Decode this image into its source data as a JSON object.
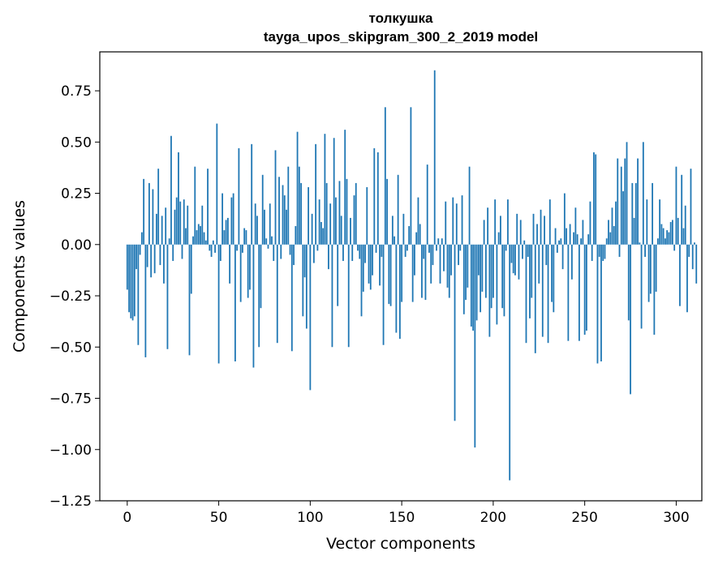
{
  "chart_data": {
    "type": "bar",
    "title": "толкушка",
    "subtitle": "tayga_upos_skipgram_300_2_2019 model",
    "xlabel": "Vector components",
    "ylabel": "Components values",
    "xlim": [
      -15,
      314
    ],
    "ylim": [
      -1.25,
      0.94
    ],
    "xticks": [
      0,
      50,
      100,
      150,
      200,
      250,
      300
    ],
    "xtick_labels": [
      "0",
      "50",
      "100",
      "150",
      "200",
      "250",
      "300"
    ],
    "yticks": [
      -1.25,
      -1.0,
      -0.75,
      -0.5,
      -0.25,
      0.0,
      0.25,
      0.5,
      0.75
    ],
    "ytick_labels": [
      "−1.25",
      "−1.00",
      "−0.75",
      "−0.50",
      "−0.25",
      "0.00",
      "0.25",
      "0.50",
      "0.75"
    ],
    "grid": false,
    "legend": "none",
    "bar_color": "#1f77b4",
    "values": [
      -0.22,
      -0.33,
      -0.36,
      -0.37,
      -0.35,
      -0.12,
      -0.49,
      -0.05,
      0.06,
      0.32,
      -0.55,
      -0.11,
      0.3,
      -0.16,
      0.27,
      -0.14,
      0.15,
      0.37,
      -0.1,
      0.14,
      -0.19,
      0.18,
      -0.51,
      0.03,
      0.53,
      -0.08,
      0.17,
      0.23,
      0.45,
      0.21,
      -0.07,
      0.22,
      0.08,
      0.19,
      -0.54,
      -0.24,
      0.04,
      0.38,
      0.07,
      0.1,
      0.09,
      0.19,
      0.06,
      0.02,
      0.37,
      -0.03,
      -0.06,
      0.02,
      -0.04,
      0.59,
      -0.58,
      -0.08,
      0.25,
      0.07,
      0.12,
      0.13,
      -0.19,
      0.23,
      0.25,
      -0.57,
      -0.03,
      0.47,
      -0.28,
      -0.04,
      0.08,
      0.07,
      -0.26,
      -0.22,
      0.49,
      -0.6,
      0.2,
      0.14,
      -0.5,
      -0.31,
      0.34,
      0.17,
      0.03,
      -0.02,
      0.2,
      0.04,
      -0.08,
      0.46,
      -0.48,
      0.33,
      -0.07,
      0.29,
      0.24,
      0.17,
      0.38,
      -0.05,
      -0.52,
      -0.1,
      0.09,
      0.55,
      0.38,
      0.3,
      -0.35,
      -0.16,
      -0.41,
      0.28,
      -0.71,
      0.15,
      -0.09,
      0.49,
      -0.03,
      0.22,
      0.11,
      0.08,
      0.54,
      0.3,
      -0.12,
      0.2,
      -0.5,
      0.52,
      0.23,
      -0.3,
      0.31,
      0.14,
      -0.08,
      0.56,
      0.32,
      -0.5,
      0.13,
      -0.08,
      0.24,
      0.3,
      -0.03,
      -0.07,
      -0.35,
      -0.23,
      -0.09,
      0.28,
      -0.19,
      -0.22,
      -0.15,
      0.47,
      -0.04,
      0.45,
      -0.2,
      -0.06,
      -0.49,
      0.67,
      0.32,
      -0.29,
      -0.3,
      0.14,
      0.04,
      -0.43,
      0.34,
      -0.46,
      -0.28,
      0.15,
      -0.06,
      -0.03,
      0.09,
      0.67,
      -0.28,
      -0.15,
      0.06,
      0.23,
      0.1,
      -0.26,
      -0.07,
      -0.27,
      0.39,
      -0.04,
      -0.19,
      -0.1,
      0.85,
      -0.03,
      0.03,
      -0.19,
      0.03,
      -0.13,
      0.21,
      -0.21,
      -0.26,
      -0.15,
      0.23,
      -0.86,
      0.2,
      -0.1,
      -0.03,
      0.24,
      -0.34,
      -0.27,
      -0.21,
      0.38,
      -0.4,
      -0.42,
      -0.99,
      -0.37,
      -0.15,
      -0.33,
      -0.23,
      0.12,
      -0.26,
      0.18,
      -0.45,
      -0.31,
      -0.26,
      0.22,
      -0.39,
      0.06,
      0.14,
      -0.31,
      -0.35,
      -0.03,
      0.22,
      -1.15,
      -0.09,
      -0.14,
      -0.15,
      0.15,
      -0.17,
      0.12,
      -0.07,
      0.02,
      -0.48,
      -0.06,
      -0.36,
      -0.26,
      0.15,
      -0.53,
      0.1,
      -0.19,
      0.17,
      -0.45,
      0.14,
      -0.1,
      -0.48,
      0.22,
      -0.28,
      -0.33,
      0.08,
      -0.04,
      0.02,
      0.03,
      -0.12,
      0.25,
      0.08,
      -0.47,
      0.1,
      -0.17,
      0.06,
      0.18,
      0.05,
      -0.47,
      0.03,
      0.12,
      -0.44,
      -0.42,
      0.05,
      0.21,
      -0.08,
      0.45,
      0.44,
      -0.58,
      -0.06,
      -0.57,
      -0.08,
      -0.07,
      0.03,
      0.12,
      0.06,
      0.18,
      0.09,
      0.21,
      0.42,
      -0.06,
      0.38,
      0.26,
      0.42,
      0.5,
      -0.37,
      -0.73,
      0.3,
      0.13,
      0.3,
      0.42,
      0.01,
      -0.41,
      0.5,
      -0.06,
      0.22,
      -0.28,
      -0.24,
      0.3,
      -0.44,
      -0.23,
      0.03,
      0.22,
      0.1,
      0.08,
      0.03,
      0.07,
      0.06,
      0.11,
      0.12,
      -0.03,
      0.38,
      0.13,
      -0.3,
      0.34,
      0.08,
      0.19,
      -0.33,
      -0.06,
      0.37,
      -0.12,
      0.01,
      -0.19
    ]
  }
}
